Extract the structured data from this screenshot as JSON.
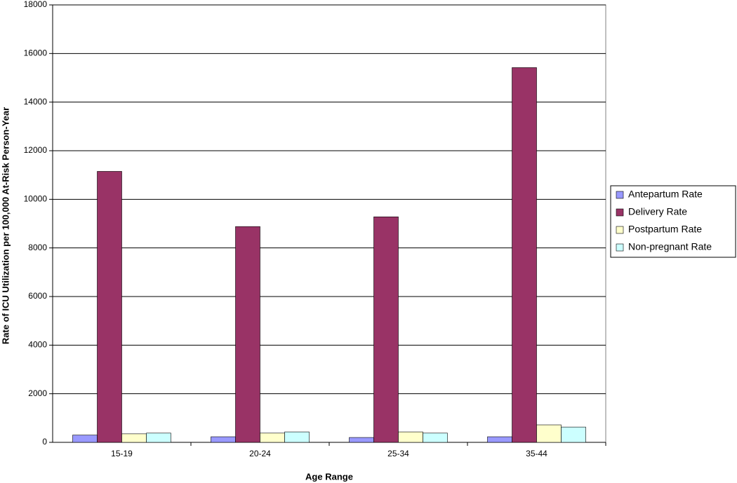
{
  "chart_data": {
    "type": "bar",
    "xlabel": "Age Range",
    "ylabel": "Rate of ICU Utilization per 100,000 At-Risk Person-Year",
    "categories": [
      "15-19",
      "20-24",
      "25-34",
      "35-44"
    ],
    "series": [
      {
        "name": "Antepartum Rate",
        "color": "#9999ff",
        "values": [
          300,
          230,
          200,
          230
        ]
      },
      {
        "name": "Delivery Rate",
        "color": "#993366",
        "values": [
          11150,
          8880,
          9280,
          15420
        ]
      },
      {
        "name": "Postpartum Rate",
        "color": "#ffffcc",
        "values": [
          350,
          380,
          430,
          720
        ]
      },
      {
        "name": "Non-pregnant Rate",
        "color": "#ccffff",
        "values": [
          380,
          430,
          380,
          630
        ]
      }
    ],
    "ylim": [
      0,
      18000
    ],
    "yticks": [
      0,
      2000,
      4000,
      6000,
      8000,
      10000,
      12000,
      14000,
      16000,
      18000
    ],
    "grid": true,
    "legend": "right"
  }
}
